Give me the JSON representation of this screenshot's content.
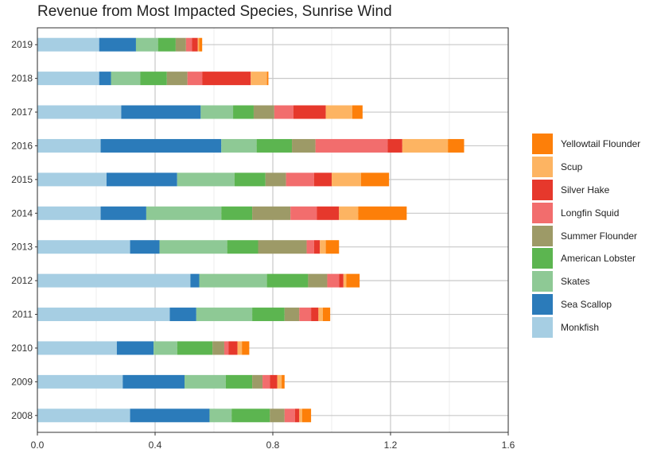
{
  "chart_data": {
    "type": "bar",
    "orientation": "horizontal",
    "stacked": true,
    "title": "Revenue from Most Impacted Species, Sunrise Wind",
    "xlabel": "",
    "ylabel": "",
    "xlim": [
      0,
      1.6
    ],
    "x_ticks": [
      "0.0",
      "0.4",
      "0.8",
      "1.2",
      "1.6"
    ],
    "grid": true,
    "legend_position": "right",
    "categories": [
      "2019",
      "2018",
      "2017",
      "2016",
      "2015",
      "2014",
      "2013",
      "2012",
      "2011",
      "2010",
      "2009",
      "2008"
    ],
    "series": [
      {
        "name": "Monkfish",
        "color": "#a6cee3",
        "values": [
          0.21,
          0.21,
          0.285,
          0.215,
          0.235,
          0.215,
          0.315,
          0.52,
          0.45,
          0.27,
          0.29,
          0.315
        ]
      },
      {
        "name": "Sea Scallop",
        "color": "#2b7bba",
        "values": [
          0.125,
          0.04,
          0.27,
          0.41,
          0.24,
          0.155,
          0.1,
          0.03,
          0.09,
          0.125,
          0.21,
          0.27
        ]
      },
      {
        "name": "Skates",
        "color": "#8ec995",
        "values": [
          0.075,
          0.1,
          0.11,
          0.12,
          0.195,
          0.255,
          0.23,
          0.23,
          0.19,
          0.08,
          0.14,
          0.075
        ]
      },
      {
        "name": "American Lobster",
        "color": "#5cb550",
        "values": [
          0.06,
          0.09,
          0.07,
          0.12,
          0.105,
          0.105,
          0.105,
          0.14,
          0.11,
          0.12,
          0.09,
          0.13
        ]
      },
      {
        "name": "Summer Flounder",
        "color": "#9d9a67",
        "values": [
          0.035,
          0.07,
          0.07,
          0.08,
          0.07,
          0.13,
          0.165,
          0.065,
          0.05,
          0.04,
          0.035,
          0.05
        ]
      },
      {
        "name": "Longfin Squid",
        "color": "#f26d6d",
        "values": [
          0.02,
          0.05,
          0.065,
          0.245,
          0.095,
          0.09,
          0.025,
          0.04,
          0.04,
          0.015,
          0.025,
          0.035
        ]
      },
      {
        "name": "Silver Hake",
        "color": "#e6382c",
        "values": [
          0.02,
          0.165,
          0.11,
          0.05,
          0.06,
          0.075,
          0.02,
          0.015,
          0.025,
          0.03,
          0.025,
          0.015
        ]
      },
      {
        "name": "Scup",
        "color": "#fdb462",
        "values": [
          0.005,
          0.055,
          0.09,
          0.155,
          0.1,
          0.065,
          0.02,
          0.01,
          0.015,
          0.015,
          0.015,
          0.01
        ]
      },
      {
        "name": "Yellowtail Flounder",
        "color": "#fd7f09",
        "values": [
          0.01,
          0.005,
          0.035,
          0.055,
          0.095,
          0.165,
          0.045,
          0.045,
          0.025,
          0.025,
          0.01,
          0.03
        ]
      }
    ]
  }
}
